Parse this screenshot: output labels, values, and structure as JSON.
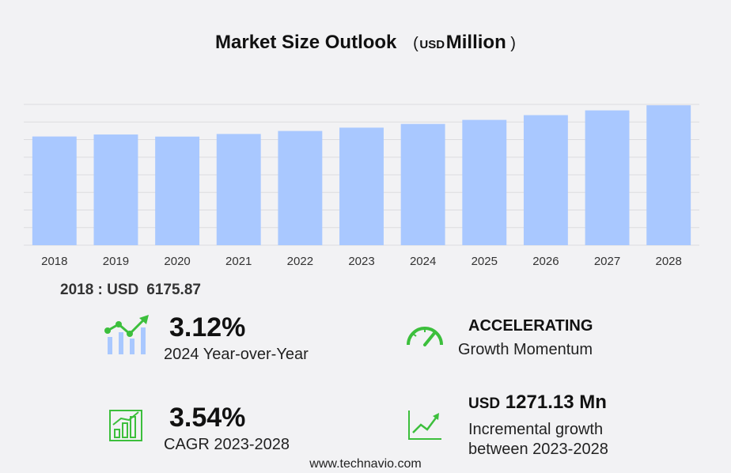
{
  "chart_data": {
    "type": "bar",
    "title": "Market Size Outlook",
    "unit_prefix": "USD",
    "unit": "Million",
    "categories": [
      "2018",
      "2019",
      "2020",
      "2021",
      "2022",
      "2023",
      "2024",
      "2025",
      "2026",
      "2027",
      "2028"
    ],
    "values": [
      6175.87,
      6290,
      6170,
      6320,
      6490,
      6680,
      6890,
      7120,
      7390,
      7660,
      7950
    ],
    "ylim": [
      0,
      8000
    ],
    "grid": true,
    "bar_color": "#a9c8ff"
  },
  "base": {
    "label": "2018 : USD",
    "value": "6175.87"
  },
  "stats": {
    "yoy": {
      "value": "3.12%",
      "label": "2024 Year-over-Year"
    },
    "momentum": {
      "value": "ACCELERATING",
      "label": "Growth Momentum"
    },
    "cagr": {
      "value": "3.54%",
      "label": "CAGR 2023-2028"
    },
    "incremental": {
      "prefix": "USD",
      "value": "1271.13 Mn",
      "label_line1": "Incremental growth",
      "label_line2": "between 2023-2028"
    }
  },
  "footer": "www.technavio.com",
  "colors": {
    "accent": "#3cbf3c",
    "bar": "#a9c8ff",
    "icon_blue": "#a9c8ff"
  },
  "icons": [
    "growth-chart-icon",
    "speedometer-icon",
    "bar-growth-icon",
    "line-growth-icon"
  ]
}
